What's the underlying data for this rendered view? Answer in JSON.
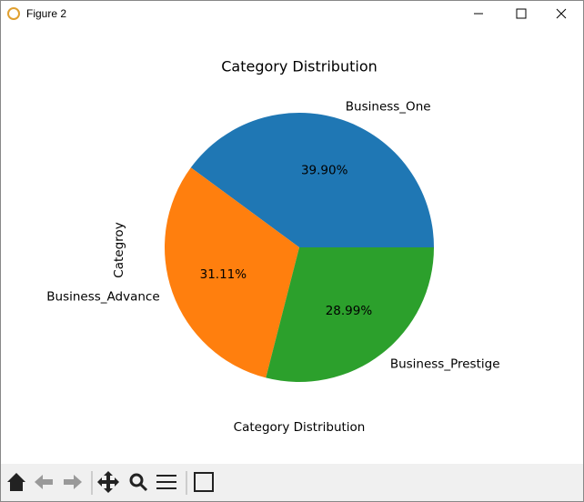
{
  "window": {
    "title": "Figure 2"
  },
  "chart_data": {
    "type": "pie",
    "title": "Category Distribution",
    "xlabel": "Category Distribution",
    "ylabel": "Categroy",
    "categories": [
      "Business_One",
      "Business_Advance",
      "Business_Prestige"
    ],
    "values": [
      39.9,
      31.11,
      28.99
    ],
    "value_labels": [
      "39.90%",
      "31.11%",
      "28.99%"
    ],
    "colors": [
      "#1f77b4",
      "#ff7f0e",
      "#2ca02c"
    ]
  }
}
